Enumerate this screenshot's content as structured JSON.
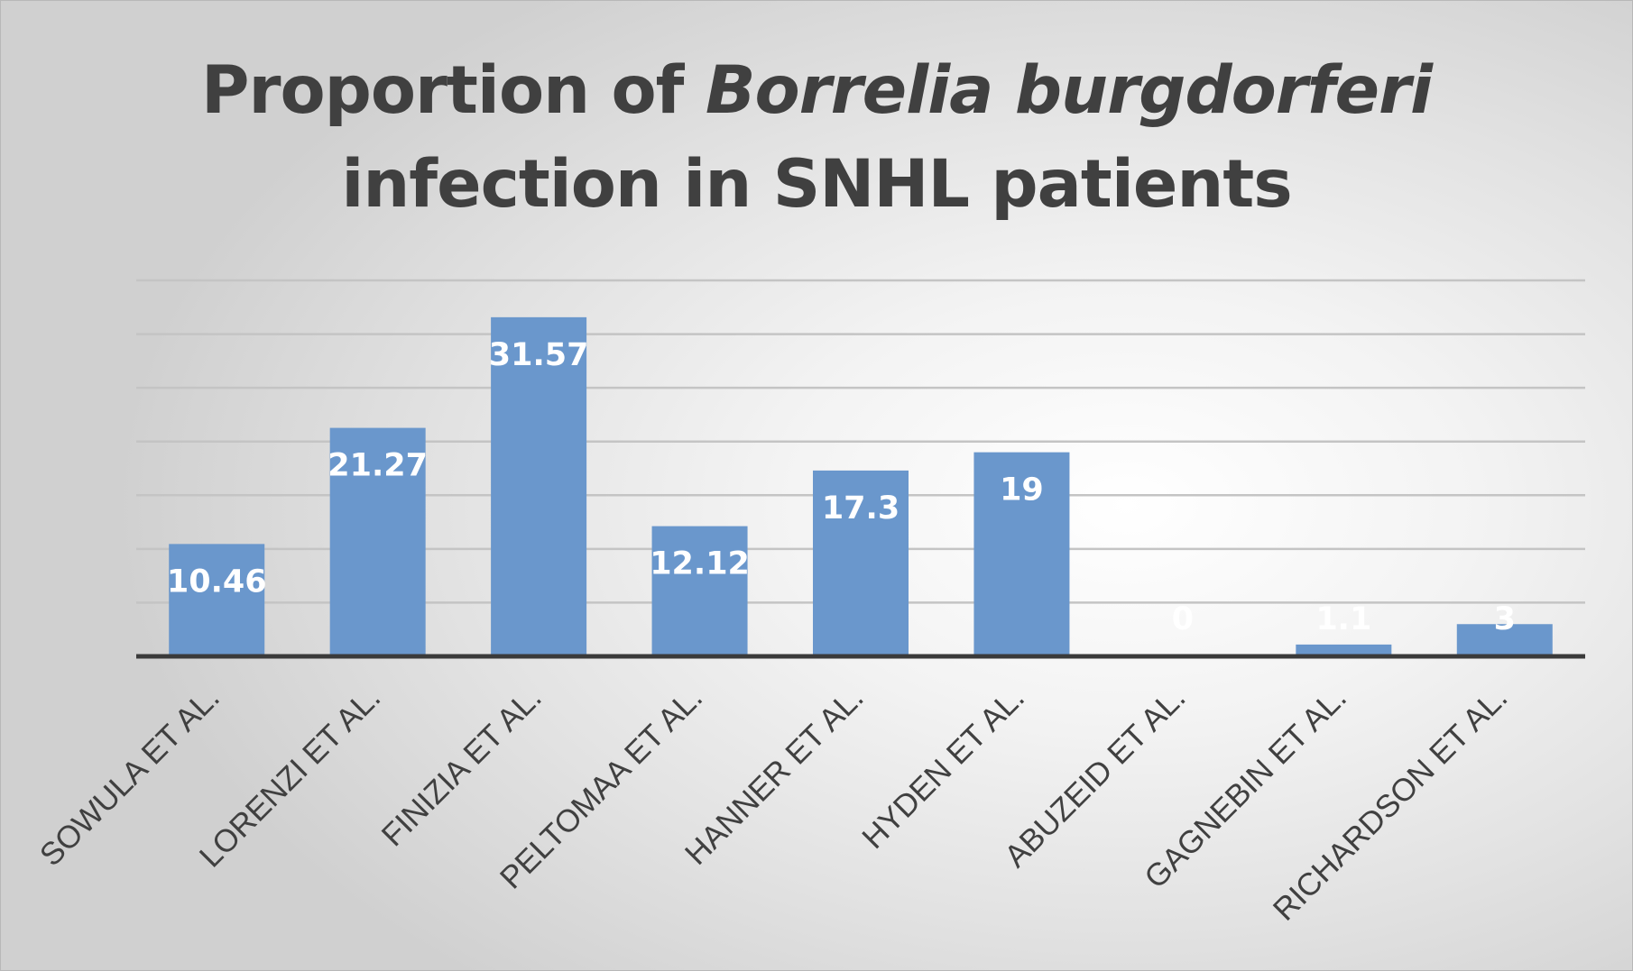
{
  "chart_data": {
    "type": "bar",
    "title": {
      "part1": "Proportion of ",
      "italic": "Borrelia burgdorferi",
      "part2": "infection in SNHL patients"
    },
    "categories": [
      "SOWULA ET AL.",
      "LORENZI ET AL.",
      "FINIZIA ET AL.",
      "PELTOMAA ET AL.",
      "HANNER ET AL.",
      "HYDEN ET AL.",
      "ABUZEID ET AL.",
      "GAGNEBIN ET AL.",
      "RICHARDSON ET AL."
    ],
    "values": [
      10.46,
      21.27,
      31.57,
      12.12,
      17.3,
      19,
      0,
      1.1,
      3
    ],
    "value_labels": [
      "10.46",
      "21.27",
      "31.57",
      "12.12",
      "17.3",
      "19",
      "0",
      "1.1",
      "3"
    ],
    "ylim": [
      0,
      35
    ],
    "gridline_step": 5,
    "grid": true,
    "show_axis_tick_labels": false,
    "bar_color": "#6a97cc",
    "data_label_color": "#ffffff",
    "category_label_color": "#404040",
    "gridline_color": "#c4c4c4",
    "baseline_color": "#3a3a3a",
    "title_color": "#404040"
  }
}
